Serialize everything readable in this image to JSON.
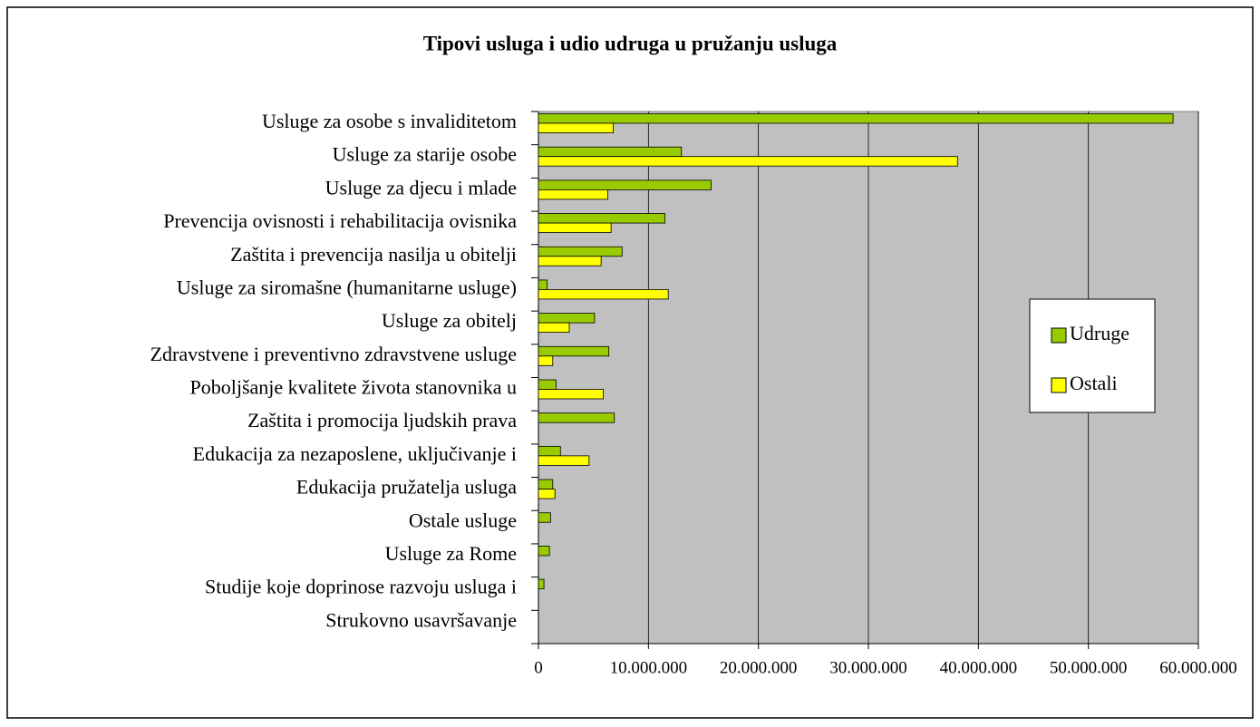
{
  "chart_data": {
    "type": "bar",
    "orientation": "horizontal",
    "title": "Tipovi usluga i udio udruga u pružanju usluga",
    "categories": [
      "Usluge za osobe s invaliditetom",
      "Usluge za starije osobe",
      "Usluge za djecu i mlade",
      "Prevencija ovisnosti i rehabilitacija ovisnika",
      "Zaštita i prevencija nasilja u obitelji",
      "Usluge za siromašne (humanitarne usluge)",
      "Usluge za obitelj",
      "Zdravstvene i preventivno zdravstvene usluge",
      "Poboljšanje kvalitete života stanovnika u",
      "Zaštita i promocija ljudskih prava",
      "Edukacija za nezaposlene, uključivanje i",
      "Edukacija pružatelja usluga",
      "Ostale usluge",
      "Usluge za Rome",
      "Studije koje doprinose razvoju usluga i",
      "Strukovno usavršavanje"
    ],
    "series": [
      {
        "name": "Udruge",
        "color": "#99cc00",
        "values": [
          57700000,
          13000000,
          15700000,
          11500000,
          7600000,
          800000,
          5100000,
          6400000,
          1600000,
          6900000,
          2000000,
          1300000,
          1100000,
          1000000,
          500000,
          0
        ]
      },
      {
        "name": "Ostali",
        "color": "#ffff00",
        "values": [
          6800000,
          38100000,
          6300000,
          6600000,
          5700000,
          11800000,
          2800000,
          1300000,
          5900000,
          0,
          4600000,
          1500000,
          0,
          0,
          0,
          0
        ]
      }
    ],
    "xlim": [
      0,
      60000000
    ],
    "xticks": [
      0,
      {
        "value": 10000000,
        "label": "10.000.000"
      },
      {
        "value": 20000000,
        "label": "20.000.000"
      },
      {
        "value": 30000000,
        "label": "30.000.000"
      },
      {
        "value": 40000000,
        "label": "40.000.000"
      },
      {
        "value": 50000000,
        "label": "50.000.000"
      },
      {
        "value": 60000000,
        "label": "60.000.000"
      }
    ],
    "grid": true,
    "legend": "right",
    "plot_background": "#c0c0c0"
  }
}
